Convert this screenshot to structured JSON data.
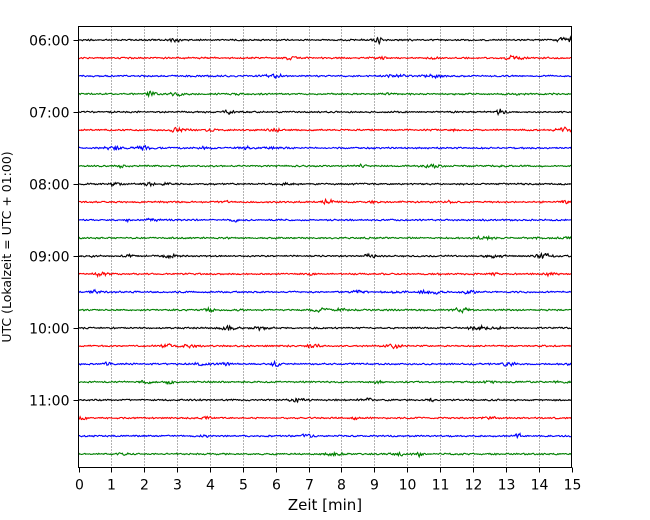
{
  "chart_data": {
    "type": "line",
    "title": "",
    "xlabel": "Zeit  [min]",
    "ylabel": "UTC (Lokalzeit = UTC + 01:00)",
    "xlim": [
      0,
      15
    ],
    "x_ticks": [
      "0",
      "1",
      "2",
      "3",
      "4",
      "5",
      "6",
      "7",
      "8",
      "9",
      "10",
      "11",
      "12",
      "13",
      "14",
      "15"
    ],
    "y_ticks": [
      "06:00",
      "07:00",
      "08:00",
      "09:00",
      "10:00",
      "11:00"
    ],
    "grid_x": true,
    "grid_style": "dotted vertical lines at each minute",
    "trace_interval_minutes": 15,
    "traces_start": "06:00",
    "traces_end": "11:45",
    "colors": [
      "#000000",
      "#ff0000",
      "#0000ff",
      "#008000"
    ],
    "traces": [
      {
        "start": "06:00",
        "color": "#000000"
      },
      {
        "start": "06:15",
        "color": "#ff0000"
      },
      {
        "start": "06:30",
        "color": "#0000ff"
      },
      {
        "start": "06:45",
        "color": "#008000"
      },
      {
        "start": "07:00",
        "color": "#000000"
      },
      {
        "start": "07:15",
        "color": "#ff0000"
      },
      {
        "start": "07:30",
        "color": "#0000ff"
      },
      {
        "start": "07:45",
        "color": "#008000"
      },
      {
        "start": "08:00",
        "color": "#000000"
      },
      {
        "start": "08:15",
        "color": "#ff0000"
      },
      {
        "start": "08:30",
        "color": "#0000ff"
      },
      {
        "start": "08:45",
        "color": "#008000"
      },
      {
        "start": "09:00",
        "color": "#000000"
      },
      {
        "start": "09:15",
        "color": "#ff0000"
      },
      {
        "start": "09:30",
        "color": "#0000ff"
      },
      {
        "start": "09:45",
        "color": "#008000"
      },
      {
        "start": "10:00",
        "color": "#000000"
      },
      {
        "start": "10:15",
        "color": "#ff0000"
      },
      {
        "start": "10:30",
        "color": "#0000ff"
      },
      {
        "start": "10:45",
        "color": "#008000"
      },
      {
        "start": "11:00",
        "color": "#000000"
      },
      {
        "start": "11:15",
        "color": "#ff0000"
      },
      {
        "start": "11:30",
        "color": "#0000ff"
      },
      {
        "start": "11:45",
        "color": "#008000"
      }
    ]
  }
}
